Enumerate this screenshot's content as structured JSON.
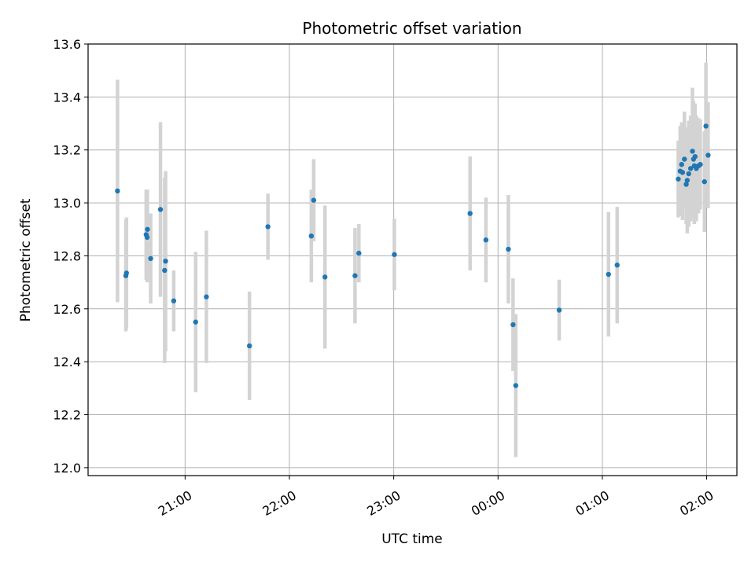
{
  "chart_data": {
    "type": "scatter",
    "title": "Photometric offset variation",
    "xlabel": "UTC time",
    "ylabel": "Photometric offset",
    "x_unit": "hours since 00:00 UTC",
    "xlim": [
      -3.93,
      2.29
    ],
    "ylim": [
      11.97,
      13.6
    ],
    "yticks": [
      12.0,
      12.2,
      12.4,
      12.6,
      12.8,
      13.0,
      13.2,
      13.4,
      13.6
    ],
    "xticks": [
      {
        "value": -3,
        "label": "21:00"
      },
      {
        "value": -2,
        "label": "22:00"
      },
      {
        "value": -1,
        "label": "23:00"
      },
      {
        "value": 0,
        "label": "00:00"
      },
      {
        "value": 1,
        "label": "01:00"
      },
      {
        "value": 2,
        "label": "02:00"
      }
    ],
    "grid": true,
    "colors": {
      "point": "#1f77b4",
      "errorbar": "#d3d3d3",
      "grid": "#b0b0b0"
    },
    "points": [
      {
        "x": -3.648,
        "y": 13.045,
        "err": 0.42
      },
      {
        "x": -3.568,
        "y": 12.725,
        "err": 0.21
      },
      {
        "x": -3.562,
        "y": 12.735,
        "err": 0.21
      },
      {
        "x": -3.373,
        "y": 12.88,
        "err": 0.17
      },
      {
        "x": -3.364,
        "y": 12.87,
        "err": 0.17
      },
      {
        "x": -3.361,
        "y": 12.9,
        "err": 0.15
      },
      {
        "x": -3.33,
        "y": 12.79,
        "err": 0.17
      },
      {
        "x": -3.236,
        "y": 12.975,
        "err": 0.33
      },
      {
        "x": -3.196,
        "y": 12.745,
        "err": 0.35
      },
      {
        "x": -3.187,
        "y": 12.78,
        "err": 0.34
      },
      {
        "x": -3.109,
        "y": 12.63,
        "err": 0.115
      },
      {
        "x": -2.899,
        "y": 12.55,
        "err": 0.265
      },
      {
        "x": -2.796,
        "y": 12.645,
        "err": 0.25
      },
      {
        "x": -2.383,
        "y": 12.46,
        "err": 0.205
      },
      {
        "x": -2.206,
        "y": 12.91,
        "err": 0.125
      },
      {
        "x": -1.79,
        "y": 12.875,
        "err": 0.175
      },
      {
        "x": -1.767,
        "y": 13.01,
        "err": 0.155
      },
      {
        "x": -1.659,
        "y": 12.72,
        "err": 0.27
      },
      {
        "x": -1.371,
        "y": 12.725,
        "err": 0.18
      },
      {
        "x": -1.334,
        "y": 12.81,
        "err": 0.11
      },
      {
        "x": -0.994,
        "y": 12.805,
        "err": 0.135
      },
      {
        "x": -0.268,
        "y": 12.96,
        "err": 0.215
      },
      {
        "x": -0.116,
        "y": 12.86,
        "err": 0.16
      },
      {
        "x": 0.099,
        "y": 12.825,
        "err": 0.205
      },
      {
        "x": 0.144,
        "y": 12.54,
        "err": 0.175
      },
      {
        "x": 0.17,
        "y": 12.31,
        "err": 0.27
      },
      {
        "x": 0.586,
        "y": 12.595,
        "err": 0.115
      },
      {
        "x": 1.059,
        "y": 12.73,
        "err": 0.235
      },
      {
        "x": 1.142,
        "y": 12.765,
        "err": 0.22
      },
      {
        "x": 1.728,
        "y": 13.09,
        "err": 0.145
      },
      {
        "x": 1.746,
        "y": 13.12,
        "err": 0.17
      },
      {
        "x": 1.76,
        "y": 13.145,
        "err": 0.16
      },
      {
        "x": 1.769,
        "y": 13.115,
        "err": 0.18
      },
      {
        "x": 1.787,
        "y": 13.165,
        "err": 0.18
      },
      {
        "x": 1.804,
        "y": 13.07,
        "err": 0.15
      },
      {
        "x": 1.814,
        "y": 13.085,
        "err": 0.2
      },
      {
        "x": 1.828,
        "y": 13.11,
        "err": 0.2
      },
      {
        "x": 1.846,
        "y": 13.13,
        "err": 0.2
      },
      {
        "x": 1.864,
        "y": 13.195,
        "err": 0.24
      },
      {
        "x": 1.874,
        "y": 13.165,
        "err": 0.22
      },
      {
        "x": 1.882,
        "y": 13.14,
        "err": 0.22
      },
      {
        "x": 1.889,
        "y": 13.175,
        "err": 0.2
      },
      {
        "x": 1.901,
        "y": 13.13,
        "err": 0.2
      },
      {
        "x": 1.922,
        "y": 13.14,
        "err": 0.18
      },
      {
        "x": 1.939,
        "y": 13.145,
        "err": 0.17
      },
      {
        "x": 1.979,
        "y": 13.08,
        "err": 0.19
      },
      {
        "x": 1.993,
        "y": 13.29,
        "err": 0.24
      },
      {
        "x": 2.014,
        "y": 13.18,
        "err": 0.2
      }
    ]
  }
}
